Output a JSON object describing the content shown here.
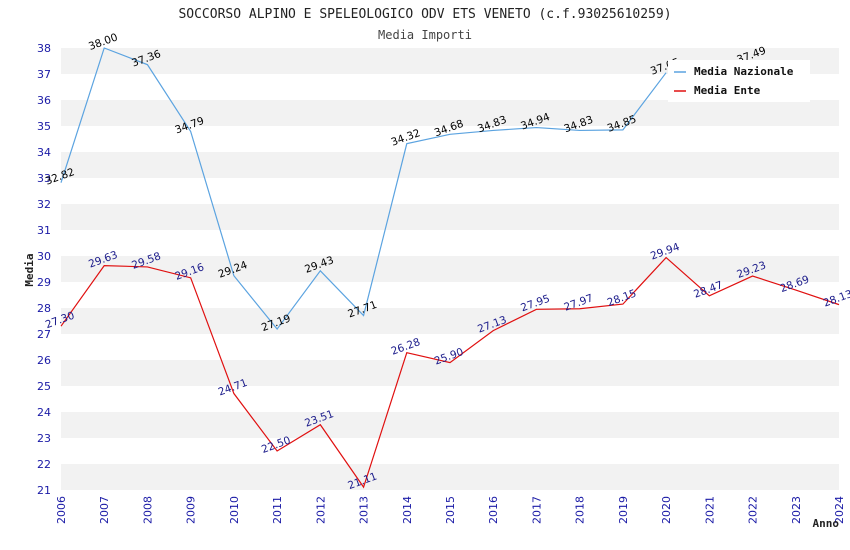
{
  "chart_data": {
    "type": "line",
    "title": "SOCCORSO ALPINO E SPELEOLOGICO ODV ETS VENETO (c.f.93025610259)",
    "subtitle": "Media Importi",
    "xlabel": "Anno",
    "ylabel": "Media",
    "ylim": [
      21,
      38
    ],
    "grid": "horizontal-bands",
    "legend_position": "top-right",
    "x": [
      "2006",
      "2007",
      "2008",
      "2009",
      "2010",
      "2011",
      "2012",
      "2013",
      "2014",
      "2015",
      "2016",
      "2017",
      "2018",
      "2019",
      "2020",
      "2021",
      "2022",
      "2023",
      "2024"
    ],
    "series": [
      {
        "name": "Media Nazionale",
        "color": "#5ba3e0",
        "label_color": "#000000",
        "values": [
          32.82,
          38.0,
          37.36,
          34.79,
          29.24,
          27.19,
          29.43,
          27.71,
          34.32,
          34.68,
          34.83,
          34.94,
          34.83,
          34.85,
          37.05,
          null,
          37.49,
          null,
          null
        ]
      },
      {
        "name": "Media Ente",
        "color": "#e01010",
        "label_color": "#1a1a8a",
        "values": [
          27.3,
          29.63,
          29.58,
          29.16,
          24.71,
          22.5,
          23.51,
          21.11,
          26.28,
          25.9,
          27.13,
          27.95,
          27.97,
          28.15,
          29.94,
          28.47,
          29.23,
          28.69,
          28.13
        ]
      }
    ]
  }
}
